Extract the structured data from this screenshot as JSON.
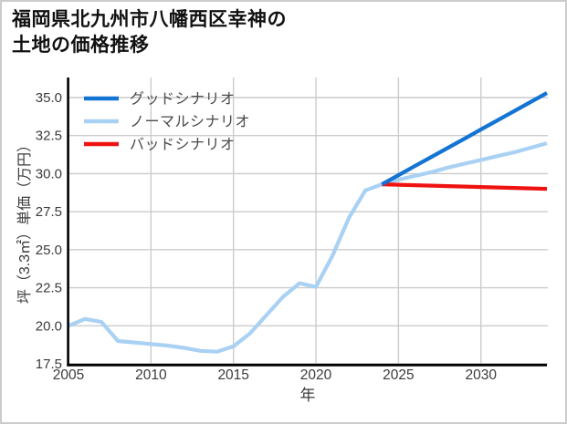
{
  "page": {
    "title_line1": "福岡県北九州市八幡西区幸神の",
    "title_line2": "土地の価格推移"
  },
  "chart_data": {
    "type": "line",
    "title": "福岡県北九州市八幡西区幸神の土地の価格推移",
    "xlabel": "年",
    "ylabel": "坪（3.3㎡）単価（万円）",
    "xlim": [
      2005,
      2034
    ],
    "ylim": [
      17.5,
      36.3
    ],
    "x_ticks": [
      2005,
      2010,
      2015,
      2020,
      2025,
      2030
    ],
    "y_ticks": [
      17.5,
      20.0,
      22.5,
      25.0,
      27.5,
      30.0,
      32.5,
      35.0
    ],
    "grid": true,
    "legend_position": "upper-left",
    "series": [
      {
        "name": "グッドシナリオ",
        "color": "#1374d3",
        "x": [
          2024,
          2025,
          2026,
          2027,
          2028,
          2029,
          2030,
          2031,
          2032,
          2033,
          2034
        ],
        "values": [
          29.3,
          29.9,
          30.5,
          31.1,
          31.7,
          32.3,
          32.9,
          33.5,
          34.1,
          34.7,
          35.3
        ]
      },
      {
        "name": "ノーマルシナリオ",
        "color": "#a9d1f3",
        "x": [
          2005,
          2006,
          2007,
          2008,
          2009,
          2010,
          2011,
          2012,
          2013,
          2014,
          2015,
          2016,
          2017,
          2018,
          2019,
          2020,
          2021,
          2022,
          2023,
          2024,
          2025,
          2026,
          2027,
          2028,
          2029,
          2030,
          2031,
          2032,
          2033,
          2034
        ],
        "values": [
          20.0,
          20.45,
          20.25,
          19.0,
          18.9,
          18.8,
          18.7,
          18.55,
          18.35,
          18.3,
          18.65,
          19.5,
          20.7,
          21.9,
          22.8,
          22.55,
          24.6,
          27.1,
          28.9,
          29.3,
          29.6,
          29.85,
          30.1,
          30.4,
          30.65,
          30.9,
          31.15,
          31.4,
          31.7,
          32.0
        ]
      },
      {
        "name": "バッドシナリオ",
        "color": "#ee1311",
        "x": [
          2024,
          2025,
          2026,
          2027,
          2028,
          2029,
          2030,
          2031,
          2032,
          2033,
          2034
        ],
        "values": [
          29.3,
          29.27,
          29.24,
          29.21,
          29.18,
          29.15,
          29.12,
          29.09,
          29.06,
          29.03,
          29.0
        ]
      }
    ]
  },
  "colors": {
    "grid": "#cccccc",
    "spine": "#000000",
    "tick_text": "#3b3b3b",
    "legend_text": "#4a4a4a",
    "title_text": "#111111",
    "frame": "#cccccc",
    "background": "#ffffff"
  }
}
